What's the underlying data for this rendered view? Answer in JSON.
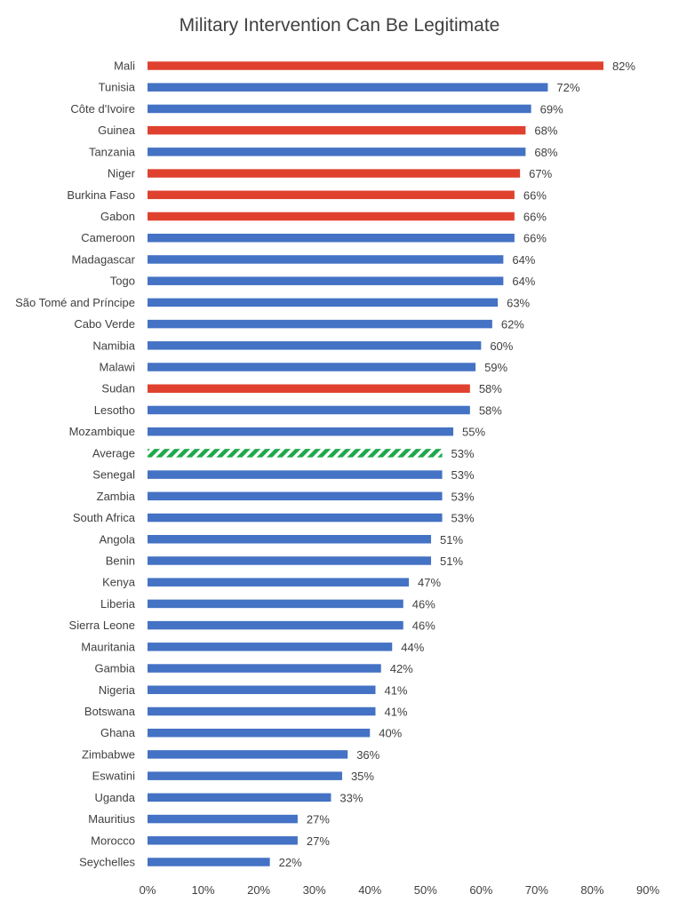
{
  "chart_data": {
    "type": "bar",
    "orientation": "horizontal",
    "title": "Military Intervention Can Be Legitimate",
    "xlabel": "",
    "ylabel": "",
    "xlim": [
      0,
      90
    ],
    "x_ticks": [
      "0%",
      "10%",
      "20%",
      "30%",
      "40%",
      "50%",
      "60%",
      "70%",
      "80%",
      "90%"
    ],
    "x_tick_values": [
      0,
      10,
      20,
      30,
      40,
      50,
      60,
      70,
      80,
      90
    ],
    "grid": false,
    "legend": "none",
    "colors": {
      "default": "#4472C4",
      "highlight": "#E0412F",
      "average": "#1EA84C"
    },
    "bars": [
      {
        "category": "Mali",
        "value": 82,
        "label": "82%",
        "style": "highlight"
      },
      {
        "category": "Tunisia",
        "value": 72,
        "label": "72%",
        "style": "default"
      },
      {
        "category": "Côte d'Ivoire",
        "value": 69,
        "label": "69%",
        "style": "default"
      },
      {
        "category": "Guinea",
        "value": 68,
        "label": "68%",
        "style": "highlight"
      },
      {
        "category": "Tanzania",
        "value": 68,
        "label": "68%",
        "style": "default"
      },
      {
        "category": "Niger",
        "value": 67,
        "label": "67%",
        "style": "highlight"
      },
      {
        "category": "Burkina Faso",
        "value": 66,
        "label": "66%",
        "style": "highlight"
      },
      {
        "category": "Gabon",
        "value": 66,
        "label": "66%",
        "style": "highlight"
      },
      {
        "category": "Cameroon",
        "value": 66,
        "label": "66%",
        "style": "default"
      },
      {
        "category": "Madagascar",
        "value": 64,
        "label": "64%",
        "style": "default"
      },
      {
        "category": "Togo",
        "value": 64,
        "label": "64%",
        "style": "default"
      },
      {
        "category": "São Tomé and Príncipe",
        "value": 63,
        "label": "63%",
        "style": "default"
      },
      {
        "category": "Cabo Verde",
        "value": 62,
        "label": "62%",
        "style": "default"
      },
      {
        "category": "Namibia",
        "value": 60,
        "label": "60%",
        "style": "default"
      },
      {
        "category": "Malawi",
        "value": 59,
        "label": "59%",
        "style": "default"
      },
      {
        "category": "Sudan",
        "value": 58,
        "label": "58%",
        "style": "highlight"
      },
      {
        "category": "Lesotho",
        "value": 58,
        "label": "58%",
        "style": "default"
      },
      {
        "category": "Mozambique",
        "value": 55,
        "label": "55%",
        "style": "default"
      },
      {
        "category": "Average",
        "value": 53,
        "label": "53%",
        "style": "average"
      },
      {
        "category": "Senegal",
        "value": 53,
        "label": "53%",
        "style": "default"
      },
      {
        "category": "Zambia",
        "value": 53,
        "label": "53%",
        "style": "default"
      },
      {
        "category": "South Africa",
        "value": 53,
        "label": "53%",
        "style": "default"
      },
      {
        "category": "Angola",
        "value": 51,
        "label": "51%",
        "style": "default"
      },
      {
        "category": "Benin",
        "value": 51,
        "label": "51%",
        "style": "default"
      },
      {
        "category": "Kenya",
        "value": 47,
        "label": "47%",
        "style": "default"
      },
      {
        "category": "Liberia",
        "value": 46,
        "label": "46%",
        "style": "default"
      },
      {
        "category": "Sierra Leone",
        "value": 46,
        "label": "46%",
        "style": "default"
      },
      {
        "category": "Mauritania",
        "value": 44,
        "label": "44%",
        "style": "default"
      },
      {
        "category": "Gambia",
        "value": 42,
        "label": "42%",
        "style": "default"
      },
      {
        "category": "Nigeria",
        "value": 41,
        "label": "41%",
        "style": "default"
      },
      {
        "category": "Botswana",
        "value": 41,
        "label": "41%",
        "style": "default"
      },
      {
        "category": "Ghana",
        "value": 40,
        "label": "40%",
        "style": "default"
      },
      {
        "category": "Zimbabwe",
        "value": 36,
        "label": "36%",
        "style": "default"
      },
      {
        "category": "Eswatini",
        "value": 35,
        "label": "35%",
        "style": "default"
      },
      {
        "category": "Uganda",
        "value": 33,
        "label": "33%",
        "style": "default"
      },
      {
        "category": "Mauritius",
        "value": 27,
        "label": "27%",
        "style": "default"
      },
      {
        "category": "Morocco",
        "value": 27,
        "label": "27%",
        "style": "default"
      },
      {
        "category": "Seychelles",
        "value": 22,
        "label": "22%",
        "style": "default"
      }
    ]
  }
}
